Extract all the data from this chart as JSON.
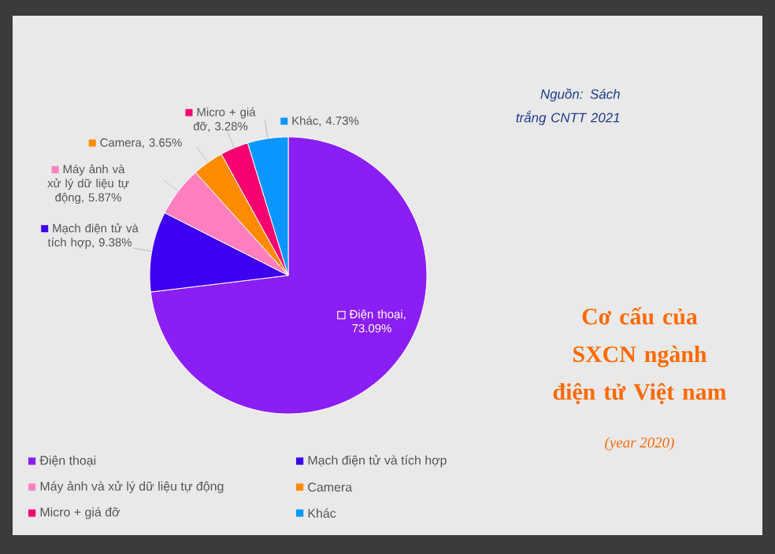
{
  "chart_data": {
    "type": "pie",
    "title": "Cơ cấu của SXCN ngành điện tử Việt nam",
    "subtitle": "(year 2020)",
    "annotations": [
      "Nguồn: Sách trắng CNTT 2021"
    ],
    "categories": [
      "Điện thoại",
      "Mạch điện tử và tích hợp",
      "Máy ảnh và xử lý dữ liệu tự động",
      "Camera",
      "Micro + giá đỡ",
      "Khác"
    ],
    "values": [
      73.09,
      9.38,
      5.87,
      3.65,
      3.28,
      4.73
    ],
    "colors": [
      "#8b1ef5",
      "#3d00f0",
      "#ff7fbf",
      "#ff8c00",
      "#f5006e",
      "#0a96ff"
    ],
    "value_labels": [
      "Điện thoại, 73.09%",
      "Mạch điện tử và tích hợp, 9.38%",
      "Máy ảnh và xử lý dữ liệu tự động, 5.87%",
      "Camera, 3.65%",
      "Micro + giá đỡ, 3.28%",
      "Khác, 4.73%"
    ],
    "legend": "bottom",
    "marker": "square"
  }
}
